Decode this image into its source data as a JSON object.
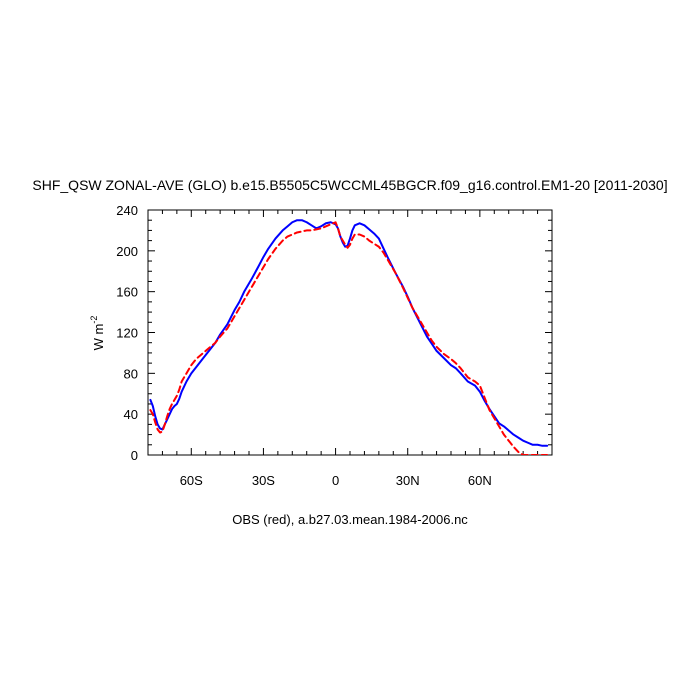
{
  "chart_data": {
    "type": "line",
    "title": "SHF_QSW ZONAL-AVE (GLO) b.e15.B5505C5WCCML45BGCR.f09_g16.control.EM1-20 [2011-2030]",
    "ylabel": "W m",
    "ylabel_sup": "-2",
    "footer": "OBS (red), a.b27.03.mean.1984-2006.nc",
    "xlim": [
      -78,
      90
    ],
    "ylim": [
      0,
      240
    ],
    "x_ticks": [
      {
        "value": -60,
        "label": "60S"
      },
      {
        "value": -30,
        "label": "30S"
      },
      {
        "value": 0,
        "label": "0"
      },
      {
        "value": 30,
        "label": "30N"
      },
      {
        "value": 60,
        "label": "60N"
      }
    ],
    "y_ticks": [
      0,
      40,
      80,
      120,
      160,
      200,
      240
    ],
    "grid": false,
    "series": [
      {
        "color": "#0000ff",
        "style": "solid",
        "x": [
          -77,
          -76,
          -75,
          -74,
          -73,
          -72,
          -71,
          -70,
          -69,
          -68,
          -67,
          -66,
          -65,
          -64,
          -62,
          -60,
          -58,
          -55,
          -52,
          -50,
          -48,
          -45,
          -42,
          -40,
          -38,
          -35,
          -32,
          -30,
          -28,
          -25,
          -22,
          -20,
          -18,
          -16,
          -14,
          -12,
          -10,
          -8,
          -6,
          -4,
          -2,
          0,
          1,
          2,
          3,
          4,
          5,
          6,
          7,
          8,
          10,
          12,
          14,
          16,
          18,
          20,
          22,
          25,
          28,
          30,
          32,
          35,
          38,
          40,
          42,
          45,
          48,
          50,
          52,
          55,
          58,
          60,
          62,
          64,
          66,
          68,
          70,
          72,
          74,
          76,
          78,
          80,
          82,
          84,
          86,
          88
        ],
        "y": [
          54,
          48,
          38,
          30,
          26,
          25,
          30,
          35,
          40,
          45,
          48,
          50,
          55,
          62,
          72,
          80,
          86,
          95,
          104,
          110,
          118,
          128,
          142,
          150,
          160,
          172,
          185,
          194,
          202,
          212,
          220,
          224,
          228,
          230,
          230,
          228,
          225,
          222,
          224,
          227,
          228,
          226,
          222,
          214,
          208,
          204,
          205,
          212,
          220,
          225,
          227,
          225,
          221,
          217,
          212,
          202,
          192,
          178,
          165,
          155,
          144,
          130,
          116,
          109,
          102,
          95,
          88,
          85,
          80,
          72,
          68,
          62,
          53,
          45,
          38,
          31,
          28,
          24,
          20,
          17,
          14,
          12,
          10,
          10,
          9,
          9
        ]
      },
      {
        "color": "#ff0000",
        "style": "dashed",
        "x": [
          -77,
          -76,
          -75,
          -74,
          -73,
          -72,
          -71,
          -70,
          -69,
          -68,
          -67,
          -66,
          -65,
          -64,
          -62,
          -60,
          -58,
          -55,
          -52,
          -50,
          -48,
          -45,
          -42,
          -40,
          -38,
          -35,
          -32,
          -30,
          -28,
          -25,
          -22,
          -20,
          -18,
          -16,
          -14,
          -12,
          -10,
          -8,
          -6,
          -4,
          -2,
          0,
          1,
          2,
          3,
          4,
          5,
          6,
          7,
          8,
          10,
          12,
          14,
          16,
          18,
          20,
          22,
          25,
          28,
          30,
          32,
          35,
          38,
          40,
          42,
          45,
          48,
          50,
          52,
          55,
          58,
          60,
          62,
          64,
          66,
          68,
          70,
          72,
          74,
          76,
          78,
          80,
          82,
          84,
          86,
          88
        ],
        "y": [
          44,
          40,
          32,
          25,
          22,
          23,
          30,
          38,
          45,
          50,
          54,
          58,
          64,
          72,
          80,
          88,
          94,
          100,
          106,
          110,
          116,
          124,
          136,
          144,
          152,
          164,
          176,
          184,
          192,
          202,
          210,
          214,
          216,
          218,
          219,
          220,
          220,
          221,
          222,
          224,
          226,
          228,
          222,
          214,
          210,
          206,
          203,
          206,
          212,
          216,
          216,
          214,
          210,
          207,
          204,
          198,
          190,
          178,
          164,
          154,
          144,
          132,
          120,
          112,
          106,
          99,
          94,
          90,
          85,
          76,
          72,
          68,
          56,
          44,
          36,
          28,
          20,
          14,
          8,
          3,
          0,
          0,
          0,
          0,
          0,
          0
        ]
      }
    ]
  }
}
